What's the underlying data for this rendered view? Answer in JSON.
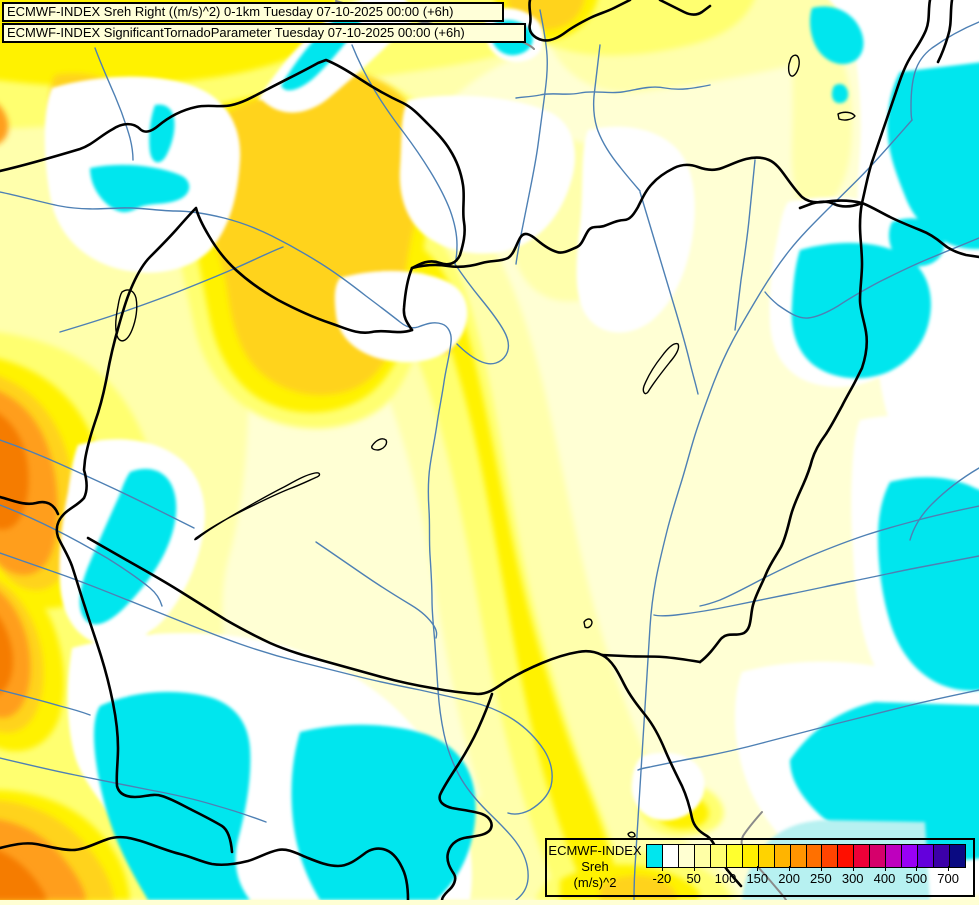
{
  "title_bar": {
    "line1": "ECMWF-INDEX Sreh Right ((m/s)^2) 0-1km Tuesday 07-10-2025 00:00 (+6h)",
    "line2": "ECMWF-INDEX SignificantTornadoParameter Tuesday 07-10-2025 00:00 (+6h)"
  },
  "legend": {
    "label_line1": "ECMWF-INDEX",
    "label_line2": "Sreh",
    "label_line3": "(m/s)^2",
    "ticks": [
      "-20",
      "50",
      "100",
      "150",
      "200",
      "250",
      "300",
      "400",
      "500",
      "700"
    ],
    "tick_cell_boundaries": [
      1,
      3,
      5,
      7,
      9,
      11,
      13,
      15,
      17,
      19
    ],
    "cells": [
      "#00E6EE",
      "#FFFFFF",
      "#FFFFD2",
      "#FFFFA6",
      "#FFFF73",
      "#FFFF2E",
      "#FFEE00",
      "#FFD300",
      "#FFB400",
      "#FF9400",
      "#FF7000",
      "#FF4400",
      "#FF0F00",
      "#ED0038",
      "#D6006B",
      "#BE00BE",
      "#9900F5",
      "#6400DC",
      "#3C00A8",
      "#0A0A82"
    ]
  },
  "map": {
    "field_colors": {
      "negative_cyan": "#00E6EE",
      "near_zero_white": "#FFFFFF",
      "pale_cream": "#FFFFD4",
      "light_yellow": "#FFFFAC",
      "yellow": "#FFFF70",
      "bright_yellow": "#FFF200",
      "gold": "#FFD31E",
      "orange": "#FF9E1A",
      "dark_orange": "#F57B00",
      "pale_cyan": "#B7F1F1"
    },
    "line_colors": {
      "country_border": "#000000",
      "river": "#4E80B4",
      "graticule_gray": "#8A8A8A"
    }
  }
}
